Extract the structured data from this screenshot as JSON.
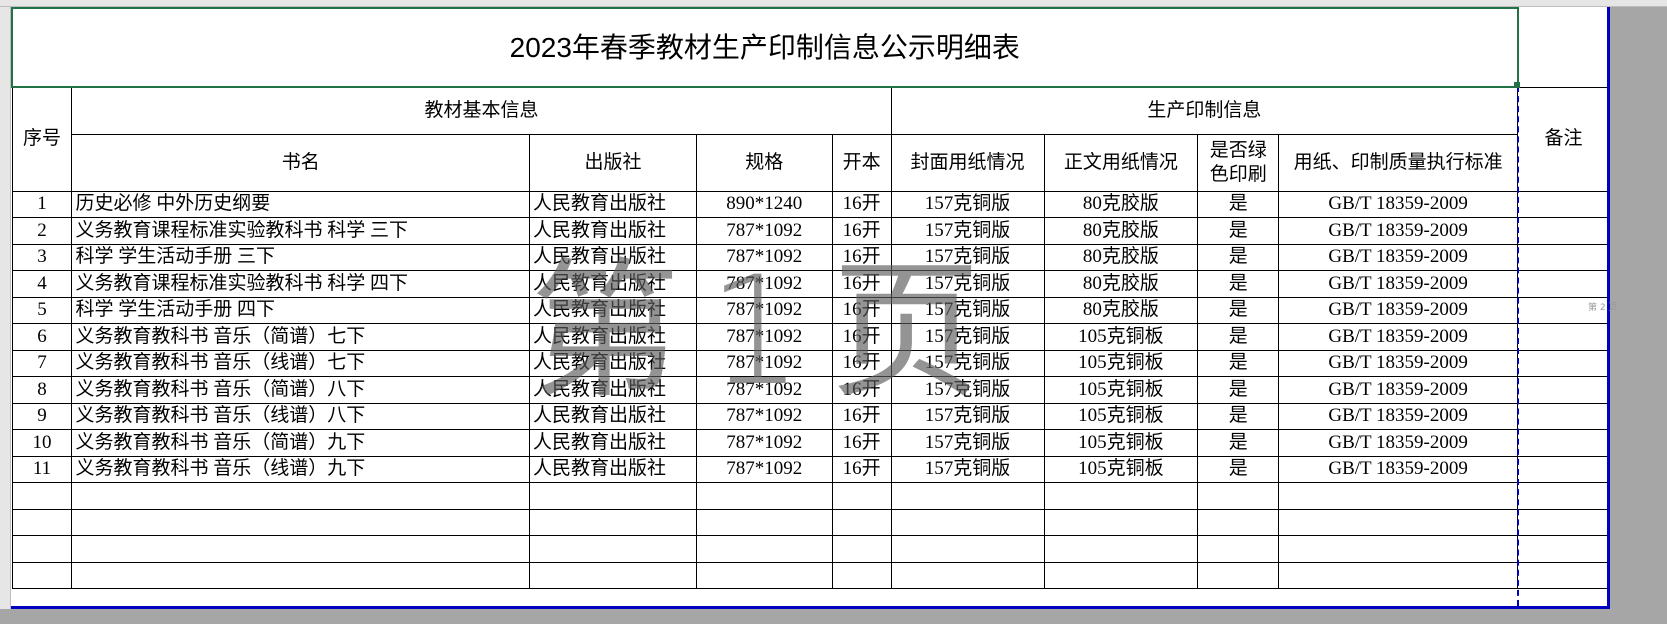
{
  "title": "2023年春季教材生产印制信息公示明细表",
  "headers": {
    "seq": "序号",
    "basic_group": "教材基本信息",
    "print_group": "生产印制信息",
    "remark": "备注",
    "book": "书名",
    "publisher": "出版社",
    "spec": "规格",
    "format": "开本",
    "cover_paper": "封面用纸情况",
    "body_paper": "正文用纸情况",
    "green_print": "是否绿色印刷",
    "standard": "用纸、印制质量执行标准"
  },
  "rows": [
    [
      "1",
      "历史必修 中外历史纲要",
      "人民教育出版社",
      "890*1240",
      "16开",
      "157克铜版",
      "80克胶版",
      "是",
      "GB/T 18359-2009"
    ],
    [
      "2",
      "义务教育课程标准实验教科书 科学 三下",
      "人民教育出版社",
      "787*1092",
      "16开",
      "157克铜版",
      "80克胶版",
      "是",
      "GB/T 18359-2009"
    ],
    [
      "3",
      "科学 学生活动手册 三下",
      "人民教育出版社",
      "787*1092",
      "16开",
      "157克铜版",
      "80克胶版",
      "是",
      "GB/T 18359-2009"
    ],
    [
      "4",
      "义务教育课程标准实验教科书 科学 四下",
      "人民教育出版社",
      "787*1092",
      "16开",
      "157克铜版",
      "80克胶版",
      "是",
      "GB/T 18359-2009"
    ],
    [
      "5",
      "科学 学生活动手册 四下",
      "人民教育出版社",
      "787*1092",
      "16开",
      "157克铜版",
      "80克胶版",
      "是",
      "GB/T 18359-2009"
    ],
    [
      "6",
      "义务教育教科书 音乐（简谱）七下",
      "人民教育出版社",
      "787*1092",
      "16开",
      "157克铜版",
      "105克铜板",
      "是",
      "GB/T 18359-2009"
    ],
    [
      "7",
      "义务教育教科书 音乐（线谱）七下",
      "人民教育出版社",
      "787*1092",
      "16开",
      "157克铜版",
      "105克铜板",
      "是",
      "GB/T 18359-2009"
    ],
    [
      "8",
      "义务教育教科书 音乐（简谱）八下",
      "人民教育出版社",
      "787*1092",
      "16开",
      "157克铜版",
      "105克铜板",
      "是",
      "GB/T 18359-2009"
    ],
    [
      "9",
      "义务教育教科书 音乐（线谱）八下",
      "人民教育出版社",
      "787*1092",
      "16开",
      "157克铜版",
      "105克铜板",
      "是",
      "GB/T 18359-2009"
    ],
    [
      "10",
      "义务教育教科书 音乐（简谱）九下",
      "人民教育出版社",
      "787*1092",
      "16开",
      "157克铜版",
      "105克铜板",
      "是",
      "GB/T 18359-2009"
    ],
    [
      "11",
      "义务教育教科书 音乐（线谱）九下",
      "人民教育出版社",
      "787*1092",
      "16开",
      "157克铜版",
      "105克铜板",
      "是",
      "GB/T 18359-2009"
    ]
  ],
  "watermark": "第 1 页",
  "watermark_page2": "第 2 页"
}
